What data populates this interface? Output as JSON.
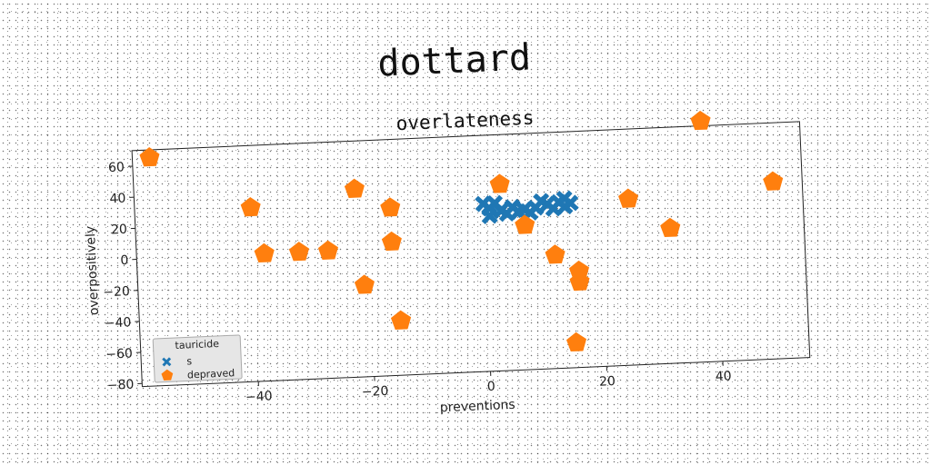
{
  "figure": {
    "suptitle": "dottard"
  },
  "chart_data": {
    "type": "scatter",
    "title": "overlateness",
    "xlabel": "preventions",
    "ylabel": "overpositively",
    "xlim": [
      -60,
      55
    ],
    "ylim": [
      -82,
      70
    ],
    "xticks": [
      -40,
      -20,
      0,
      20,
      40
    ],
    "yticks": [
      -80,
      -60,
      -40,
      -20,
      0,
      20,
      40,
      60
    ],
    "legend": {
      "title": "tauricide",
      "position": "lower left"
    },
    "series": [
      {
        "name": "s",
        "marker": "X",
        "color": "#1f77b4",
        "points": [
          [
            0,
            26
          ],
          [
            1,
            23
          ],
          [
            2,
            26
          ],
          [
            3,
            21
          ],
          [
            1,
            18
          ],
          [
            4,
            19
          ],
          [
            5,
            23
          ],
          [
            6,
            20
          ],
          [
            8,
            19
          ],
          [
            9,
            22
          ],
          [
            10,
            26
          ],
          [
            11,
            24
          ],
          [
            12,
            21
          ],
          [
            13,
            25
          ],
          [
            14,
            27
          ],
          [
            14,
            22
          ],
          [
            15,
            24
          ],
          [
            7,
            21
          ]
        ]
      },
      {
        "name": "depraved",
        "marker": "pentagon",
        "color": "#ff7f0e",
        "points": [
          [
            -57,
            65
          ],
          [
            -40,
            30
          ],
          [
            -38,
            0
          ],
          [
            -32,
            0
          ],
          [
            -27,
            0
          ],
          [
            -22,
            39
          ],
          [
            -21,
            -23
          ],
          [
            -16,
            26
          ],
          [
            -16,
            4
          ],
          [
            -15,
            -47
          ],
          [
            3,
            38
          ],
          [
            7,
            11
          ],
          [
            12,
            -9
          ],
          [
            16,
            -27
          ],
          [
            16,
            -20
          ],
          [
            15,
            -66
          ],
          [
            25,
            25
          ],
          [
            32,
            5
          ],
          [
            38,
            73
          ],
          [
            50,
            32
          ]
        ]
      }
    ]
  }
}
